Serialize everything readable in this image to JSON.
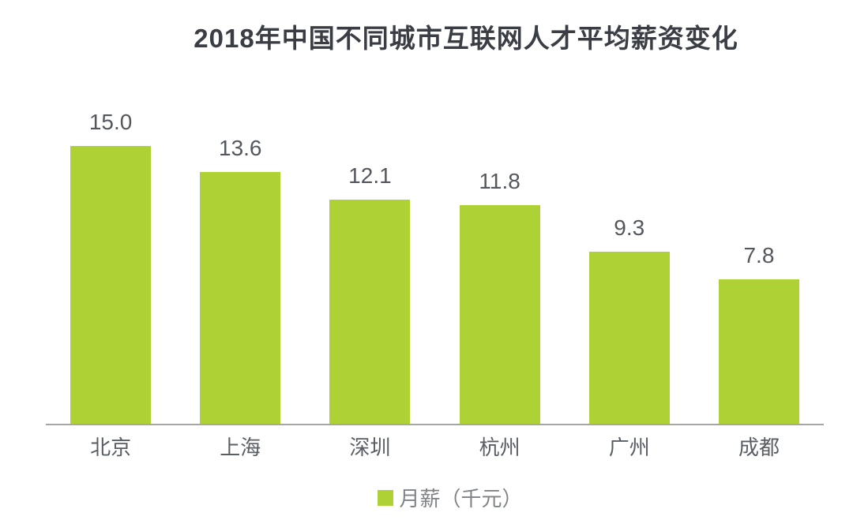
{
  "chart_data": {
    "type": "bar",
    "title": "2018年中国不同城市互联网人才平均薪资变化",
    "categories": [
      "北京",
      "上海",
      "深圳",
      "杭州",
      "广州",
      "成都"
    ],
    "values": [
      15.0,
      13.6,
      12.1,
      11.8,
      9.3,
      7.8
    ],
    "series_name": "月薪（千元）",
    "value_labels": [
      "15.0",
      "13.6",
      "12.1",
      "11.8",
      "9.3",
      "7.8"
    ],
    "ylim": [
      0,
      15
    ],
    "xlabel": "",
    "ylabel": "",
    "grid": false,
    "legend_position": "bottom",
    "bar_color": "#aed136",
    "axis_line_color": "#a6a6a6",
    "title_color": "#3a3e44",
    "label_color": "#54585e"
  },
  "legend": {
    "label": "月薪（千元）"
  }
}
